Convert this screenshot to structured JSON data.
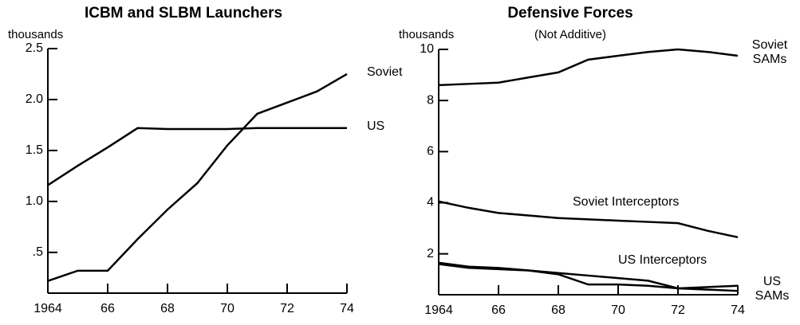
{
  "chart_data": [
    {
      "type": "line",
      "title": "ICBM and SLBM Launchers",
      "y_label": "thousands",
      "x": [
        1964,
        1965,
        1966,
        1967,
        1968,
        1969,
        1970,
        1971,
        1972,
        1973,
        1974
      ],
      "series": [
        {
          "name": "Soviet",
          "color": "#000000",
          "values": [
            0.22,
            0.32,
            0.32,
            0.63,
            0.92,
            1.18,
            1.55,
            1.86,
            1.97,
            2.08,
            2.25
          ]
        },
        {
          "name": "US",
          "color": "#000000",
          "values": [
            1.16,
            1.35,
            1.53,
            1.72,
            1.71,
            1.71,
            1.71,
            1.72,
            1.72,
            1.72,
            1.72
          ]
        }
      ],
      "xlim": [
        1964,
        1974
      ],
      "xticks": [
        1964,
        {
          "value": 1966,
          "label": "66"
        },
        {
          "value": 1968,
          "label": "68"
        },
        {
          "value": 1970,
          "label": "70"
        },
        {
          "value": 1972,
          "label": "72"
        },
        {
          "value": 1974,
          "label": "74"
        }
      ],
      "ylim": [
        0.1,
        2.5
      ],
      "yticks": [
        {
          "value": 0.5,
          "label": ".5"
        },
        {
          "value": 1.0,
          "label": "1.0"
        },
        1.5,
        {
          "value": 2.0,
          "label": "2.0"
        },
        2.5
      ],
      "grid": false
    },
    {
      "type": "line",
      "title": "Defensive Forces",
      "subtitle": "(Not Additive)",
      "y_label": "thousands",
      "x": [
        1964,
        1965,
        1966,
        1967,
        1968,
        1969,
        1970,
        1971,
        1972,
        1973,
        1974
      ],
      "series": [
        {
          "name": "Soviet SAMs",
          "color": "#000000",
          "values": [
            8.6,
            8.65,
            8.7,
            8.9,
            9.1,
            9.6,
            9.75,
            9.9,
            10.0,
            9.9,
            9.75
          ]
        },
        {
          "name": "Soviet Interceptors",
          "color": "#000000",
          "values": [
            4.05,
            3.8,
            3.6,
            3.5,
            3.4,
            3.35,
            3.3,
            3.25,
            3.2,
            2.9,
            2.65
          ]
        },
        {
          "name": "US Interceptors",
          "color": "#000000",
          "values": [
            1.6,
            1.45,
            1.4,
            1.35,
            1.2,
            0.8,
            0.8,
            0.75,
            0.65,
            0.7,
            0.75
          ]
        },
        {
          "name": "US SAMs",
          "color": "#000000",
          "values": [
            1.65,
            1.5,
            1.45,
            1.35,
            1.25,
            1.15,
            1.05,
            0.95,
            0.65,
            0.6,
            0.55
          ]
        }
      ],
      "xlim": [
        1964,
        1974
      ],
      "xticks": [
        1964,
        {
          "value": 1966,
          "label": "66"
        },
        {
          "value": 1968,
          "label": "68"
        },
        {
          "value": 1970,
          "label": "70"
        },
        {
          "value": 1972,
          "label": "72"
        },
        {
          "value": 1974,
          "label": "74"
        }
      ],
      "ylim": [
        0.4,
        10
      ],
      "yticks": [
        2,
        4,
        6,
        8,
        10
      ],
      "grid": false
    }
  ]
}
